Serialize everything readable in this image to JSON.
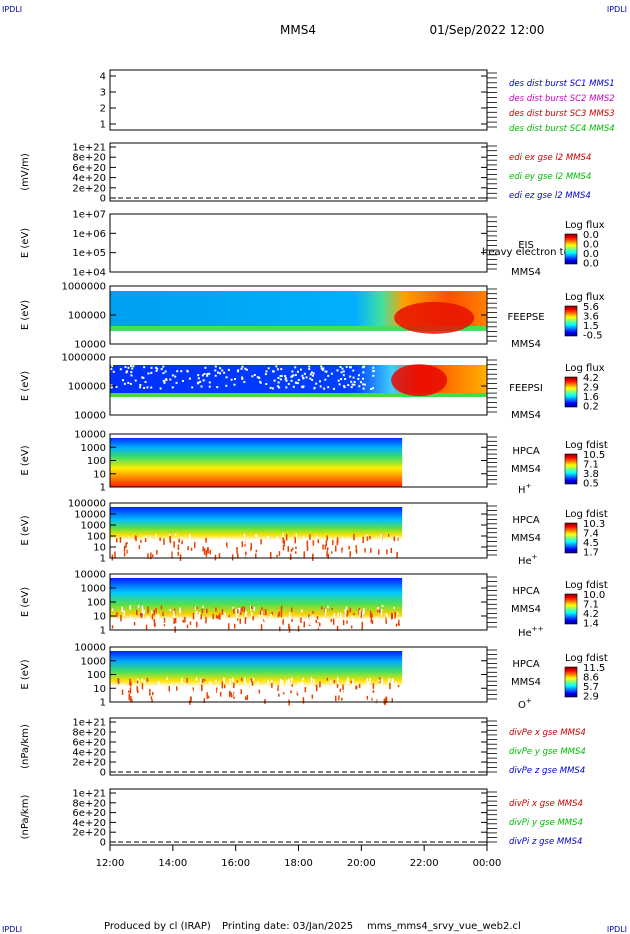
{
  "header": {
    "corner_label": "IPDLI",
    "spacecraft": "MMS4",
    "datetime": "01/Sep/2022 12:00"
  },
  "footer": {
    "produced_by": "Produced by cl (IRAP)",
    "printing_date": "Printing date: 03/Jan/2025",
    "file": "mms_mms4_srvy_vue_web2.cl"
  },
  "x_axis": {
    "ticks": [
      "12:00",
      "14:00",
      "16:00",
      "18:00",
      "20:00",
      "22:00",
      "00:00"
    ]
  },
  "panels": [
    {
      "id": "dist",
      "type": "empty",
      "y_ticks": [
        "4",
        "3",
        "2",
        "1"
      ],
      "ylabel": "",
      "legend": [
        {
          "text": "des dist burst SC1 MMS1",
          "color": "#0000cc"
        },
        {
          "text": "des dist burst SC2 MMS2",
          "color": "#cc00cc"
        },
        {
          "text": "des dist burst SC3 MMS3",
          "color": "#cc0000"
        },
        {
          "text": "des dist burst SC4 MMS4",
          "color": "#00bb00"
        }
      ]
    },
    {
      "id": "edi",
      "type": "empty",
      "y_ticks": [
        "1e+21",
        "8e+20",
        "6e+20",
        "4e+20",
        "2e+20",
        "0"
      ],
      "ylabel": "(mV/m)",
      "legend": [
        {
          "text": "edi ex gse l2 MMS4",
          "color": "#cc0000"
        },
        {
          "text": "edi ey gse l2 MMS4",
          "color": "#00bb00"
        },
        {
          "text": "edi ez gse l2 MMS4",
          "color": "#0000cc"
        }
      ]
    },
    {
      "id": "eis",
      "type": "empty-spectro",
      "y_ticks": [
        "1e+07",
        "1e+06",
        "1e+05",
        "1e+04"
      ],
      "ylabel": "E (eV)",
      "instrument": [
        "EIS",
        "MMS4"
      ],
      "overlay_text": "heavy electron to",
      "colorbar_title": "Log flux",
      "colorbar_values": [
        "0.0",
        "0.0",
        "0.0",
        "0.0"
      ]
    },
    {
      "id": "feepse",
      "type": "spectro",
      "y_ticks": [
        "1000000",
        "100000",
        "10000"
      ],
      "ylabel": "E (eV)",
      "instrument": [
        "FEEPSE",
        "MMS4"
      ],
      "colorbar_title": "Log flux",
      "colorbar_values": [
        "5.6",
        "3.6",
        "1.5",
        "-0.5"
      ]
    },
    {
      "id": "feepsi",
      "type": "spectro",
      "y_ticks": [
        "1000000",
        "100000",
        "10000"
      ],
      "ylabel": "E (eV)",
      "instrument": [
        "FEEPSI",
        "MMS4"
      ],
      "colorbar_title": "Log flux",
      "colorbar_values": [
        "4.2",
        "2.9",
        "1.6",
        "0.2"
      ]
    },
    {
      "id": "hpca_h",
      "type": "spectro",
      "y_ticks": [
        "10000",
        "1000",
        "100",
        "10",
        "1"
      ],
      "ylabel": "E (eV)",
      "instrument": [
        "HPCA",
        "MMS4",
        "H+"
      ],
      "colorbar_title": "Log fdist",
      "colorbar_values": [
        "10.5",
        "7.1",
        "3.8",
        "0.5"
      ]
    },
    {
      "id": "hpca_he",
      "type": "spectro",
      "y_ticks": [
        "100000",
        "10000",
        "1000",
        "100",
        "10",
        "1"
      ],
      "ylabel": "E (eV)",
      "instrument": [
        "HPCA",
        "MMS4",
        "He+"
      ],
      "colorbar_title": "Log fdist",
      "colorbar_values": [
        "10.3",
        "7.4",
        "4.5",
        "1.7"
      ]
    },
    {
      "id": "hpca_hepp",
      "type": "spectro",
      "y_ticks": [
        "10000",
        "1000",
        "100",
        "10",
        "1"
      ],
      "ylabel": "E (eV)",
      "instrument": [
        "HPCA",
        "MMS4",
        "He++"
      ],
      "colorbar_title": "Log fdist",
      "colorbar_values": [
        "10.0",
        "7.1",
        "4.2",
        "1.4"
      ]
    },
    {
      "id": "hpca_o",
      "type": "spectro",
      "y_ticks": [
        "10000",
        "1000",
        "100",
        "10",
        "1"
      ],
      "ylabel": "E (eV)",
      "instrument": [
        "HPCA",
        "MMS4",
        "O+"
      ],
      "colorbar_title": "Log fdist",
      "colorbar_values": [
        "11.5",
        "8.6",
        "5.7",
        "2.9"
      ]
    },
    {
      "id": "divpe",
      "type": "empty",
      "y_ticks": [
        "1e+21",
        "8e+20",
        "6e+20",
        "4e+20",
        "2e+20",
        "0"
      ],
      "ylabel": "(nPa/km)",
      "legend": [
        {
          "text": "divPe x gse MMS4",
          "color": "#cc0000"
        },
        {
          "text": "divPe y gse MMS4",
          "color": "#00bb00"
        },
        {
          "text": "divPe z gse MMS4",
          "color": "#0000cc"
        }
      ]
    },
    {
      "id": "divpi",
      "type": "empty",
      "y_ticks": [
        "1e+21",
        "8e+20",
        "6e+20",
        "4e+20",
        "2e+20",
        "0"
      ],
      "ylabel": "(nPa/km)",
      "legend": [
        {
          "text": "divPi x gse MMS4",
          "color": "#cc0000"
        },
        {
          "text": "divPi y gse MMS4",
          "color": "#00bb00"
        },
        {
          "text": "divPi z gse MMS4",
          "color": "#0000cc"
        }
      ]
    }
  ],
  "chart_data": {
    "type": "heatmap",
    "x_range": [
      "12:00",
      "00:00"
    ],
    "data_end_time": "21:15",
    "series": [
      {
        "panel": "FEEPSE",
        "quantity": "Log flux",
        "range": [
          -0.5,
          5.6
        ]
      },
      {
        "panel": "FEEPSI",
        "quantity": "Log flux",
        "range": [
          0.2,
          4.2
        ]
      },
      {
        "panel": "HPCA H+",
        "quantity": "Log fdist",
        "range": [
          0.5,
          10.5
        ]
      },
      {
        "panel": "HPCA He+",
        "quantity": "Log fdist",
        "range": [
          1.7,
          10.3
        ]
      },
      {
        "panel": "HPCA He++",
        "quantity": "Log fdist",
        "range": [
          1.4,
          10.0
        ]
      },
      {
        "panel": "HPCA O+",
        "quantity": "Log fdist",
        "range": [
          2.9,
          11.5
        ]
      }
    ],
    "grid": false
  }
}
